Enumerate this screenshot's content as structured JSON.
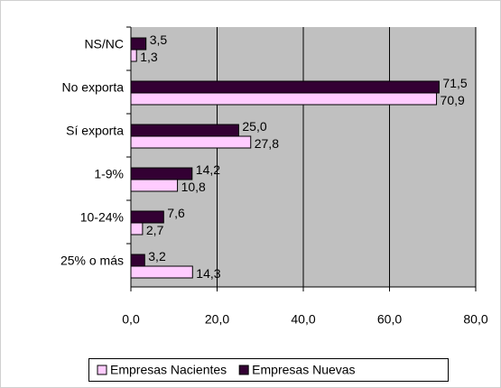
{
  "chart_data": {
    "type": "hbar",
    "categories": [
      "NS/NC",
      "No exporta",
      "Sí exporta",
      "1-9%",
      "10-24%",
      "25% o más"
    ],
    "series": [
      {
        "name": "Empresas Nacientes",
        "color": "#ffccff",
        "values": [
          1.3,
          70.9,
          27.8,
          10.8,
          2.7,
          14.3
        ],
        "value_labels": [
          "1,3",
          "70,9",
          "27,8",
          "10,8",
          "2,7",
          "14,3"
        ]
      },
      {
        "name": "Empresas Nuevas",
        "color": "#330033",
        "values": [
          3.5,
          71.5,
          25.0,
          14.2,
          7.6,
          3.2
        ],
        "value_labels": [
          "3,5",
          "71,5",
          "25,0",
          "14,2",
          "7,6",
          "3,2"
        ]
      }
    ],
    "xlim": [
      0,
      80
    ],
    "xticks": [
      {
        "value": 0,
        "label": "0,0"
      },
      {
        "value": 20,
        "label": "20,0"
      },
      {
        "value": 40,
        "label": "40,0"
      },
      {
        "value": 60,
        "label": "60,0"
      },
      {
        "value": 80,
        "label": "80,0"
      }
    ],
    "grid": true,
    "legend": "bottom"
  }
}
